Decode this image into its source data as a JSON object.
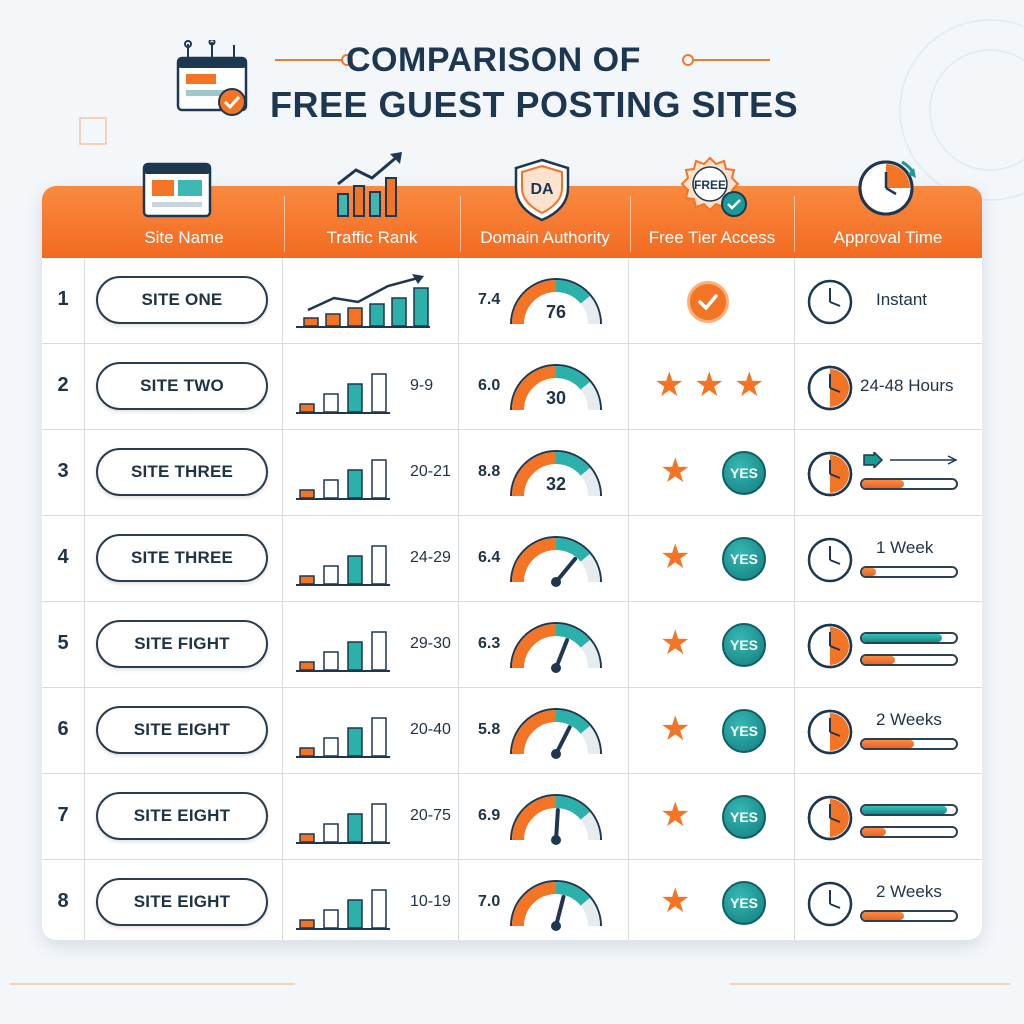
{
  "title": {
    "line1": "COMPARISON OF",
    "line2": "FREE GUEST POSTING SITES",
    "icon": "browser-check-icon"
  },
  "colors": {
    "accent_orange": "#f37424",
    "accent_teal": "#1a9a96",
    "text_dark": "#1f3345",
    "header_band": "#f57a2f"
  },
  "columns": [
    {
      "label": "Site Name",
      "icon": "browser-window-icon"
    },
    {
      "label": "Traffic Rank",
      "icon": "growth-chart-icon"
    },
    {
      "label": "Domain Authority",
      "icon": "da-shield-icon"
    },
    {
      "label": "Free Tier Access",
      "icon": "free-badge-icon"
    },
    {
      "label": "Approval Time",
      "icon": "stopwatch-icon"
    }
  ],
  "rows": [
    {
      "num": "1",
      "site": "SITE ONE",
      "traffic_range": "",
      "da_value": "7.4",
      "da_score": "76",
      "gauge_level": 0.45,
      "free_access": "check",
      "stars": 0,
      "yes": "",
      "approval_text": "Instant",
      "progress": []
    },
    {
      "num": "2",
      "site": "SITE TWO",
      "traffic_range": "9-9",
      "da_value": "6.0",
      "da_score": "30",
      "gauge_level": 0.5,
      "free_access": "stars",
      "stars": 3,
      "yes": "",
      "approval_text": "24-48 Hours",
      "progress": []
    },
    {
      "num": "3",
      "site": "SITE THREE",
      "traffic_range": "20-21",
      "da_value": "8.8",
      "da_score": "32",
      "gauge_level": 0.55,
      "free_access": "star-yes",
      "stars": 1,
      "yes": "YES",
      "approval_text": "",
      "progress": [
        {
          "level": 0.45,
          "color": "orange"
        }
      ]
    },
    {
      "num": "4",
      "site": "SITE THREE",
      "traffic_range": "24-29",
      "da_value": "6.4",
      "da_score": "",
      "gauge_level": 0.72,
      "free_access": "star-yes",
      "stars": 1,
      "yes": "YES",
      "approval_text": "1 Week",
      "progress": [
        {
          "level": 0.15,
          "color": "orange"
        }
      ]
    },
    {
      "num": "5",
      "site": "SITE FIGHT",
      "traffic_range": "29-30",
      "da_value": "6.3",
      "da_score": "",
      "gauge_level": 0.62,
      "free_access": "star-yes",
      "stars": 1,
      "yes": "YES",
      "approval_text": "",
      "progress": [
        {
          "level": 0.85,
          "color": "teal"
        },
        {
          "level": 0.35,
          "color": "orange"
        }
      ]
    },
    {
      "num": "6",
      "site": "SITE EIGHT",
      "traffic_range": "20-40",
      "da_value": "5.8",
      "da_score": "",
      "gauge_level": 0.65,
      "free_access": "star-yes",
      "stars": 1,
      "yes": "YES",
      "approval_text": "2 Weeks",
      "progress": [
        {
          "level": 0.55,
          "color": "orange"
        }
      ]
    },
    {
      "num": "7",
      "site": "SITE EIGHT",
      "traffic_range": "20-75",
      "da_value": "6.9",
      "da_score": "",
      "gauge_level": 0.52,
      "free_access": "star-yes",
      "stars": 1,
      "yes": "YES",
      "approval_text": "",
      "progress": [
        {
          "level": 0.9,
          "color": "teal"
        },
        {
          "level": 0.25,
          "color": "orange"
        }
      ]
    },
    {
      "num": "8",
      "site": "SITE EIGHT",
      "traffic_range": "10-19",
      "da_value": "7.0",
      "da_score": "",
      "gauge_level": 0.58,
      "free_access": "star-yes",
      "stars": 1,
      "yes": "YES",
      "approval_text": "2 Weeks",
      "progress": [
        {
          "level": 0.45,
          "color": "orange"
        }
      ]
    }
  ]
}
